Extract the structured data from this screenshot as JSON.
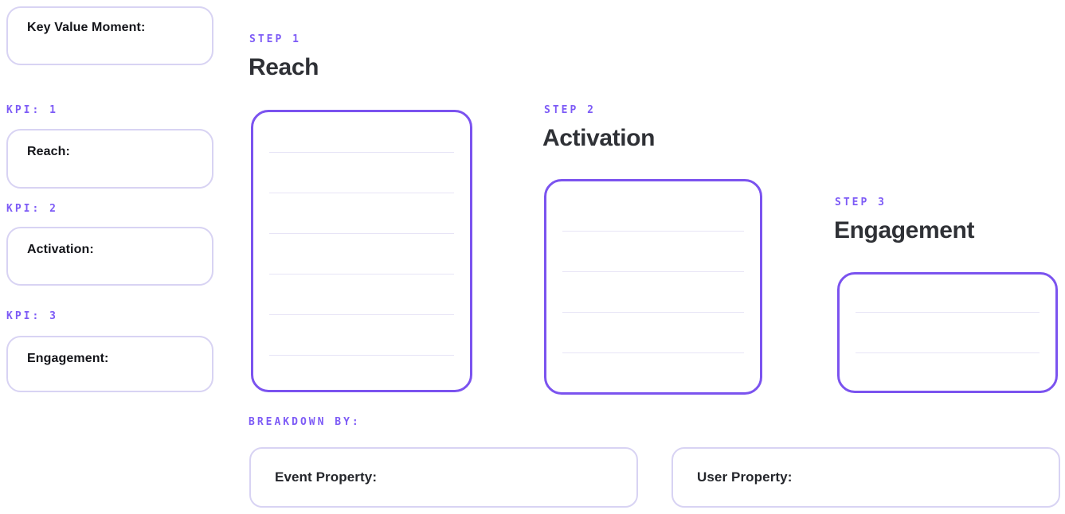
{
  "palette": {
    "accent_text": "#7d5bf6",
    "step_box_border": "#7b53ef",
    "field_box_border": "#d8d3f3",
    "rule_line": "#e7e4f6",
    "heading_text": "#2f3136",
    "label_text": "#131419",
    "background": "#ffffff"
  },
  "key_value_moment": {
    "label": "Key Value Moment:"
  },
  "kpi_section": {
    "items": [
      {
        "tag": "KPI: 1",
        "label": "Reach:"
      },
      {
        "tag": "KPI: 2",
        "label": "Activation:"
      },
      {
        "tag": "KPI: 3",
        "label": "Engagement:"
      }
    ]
  },
  "steps": [
    {
      "tag": "STEP 1",
      "title": "Reach",
      "note_lines": 6
    },
    {
      "tag": "STEP 2",
      "title": "Activation",
      "note_lines": 4
    },
    {
      "tag": "STEP 3",
      "title": "Engagement",
      "note_lines": 2
    }
  ],
  "breakdown": {
    "tag": "BREAKDOWN BY:",
    "fields": [
      {
        "label": "Event Property:"
      },
      {
        "label": "User Property:"
      }
    ]
  }
}
